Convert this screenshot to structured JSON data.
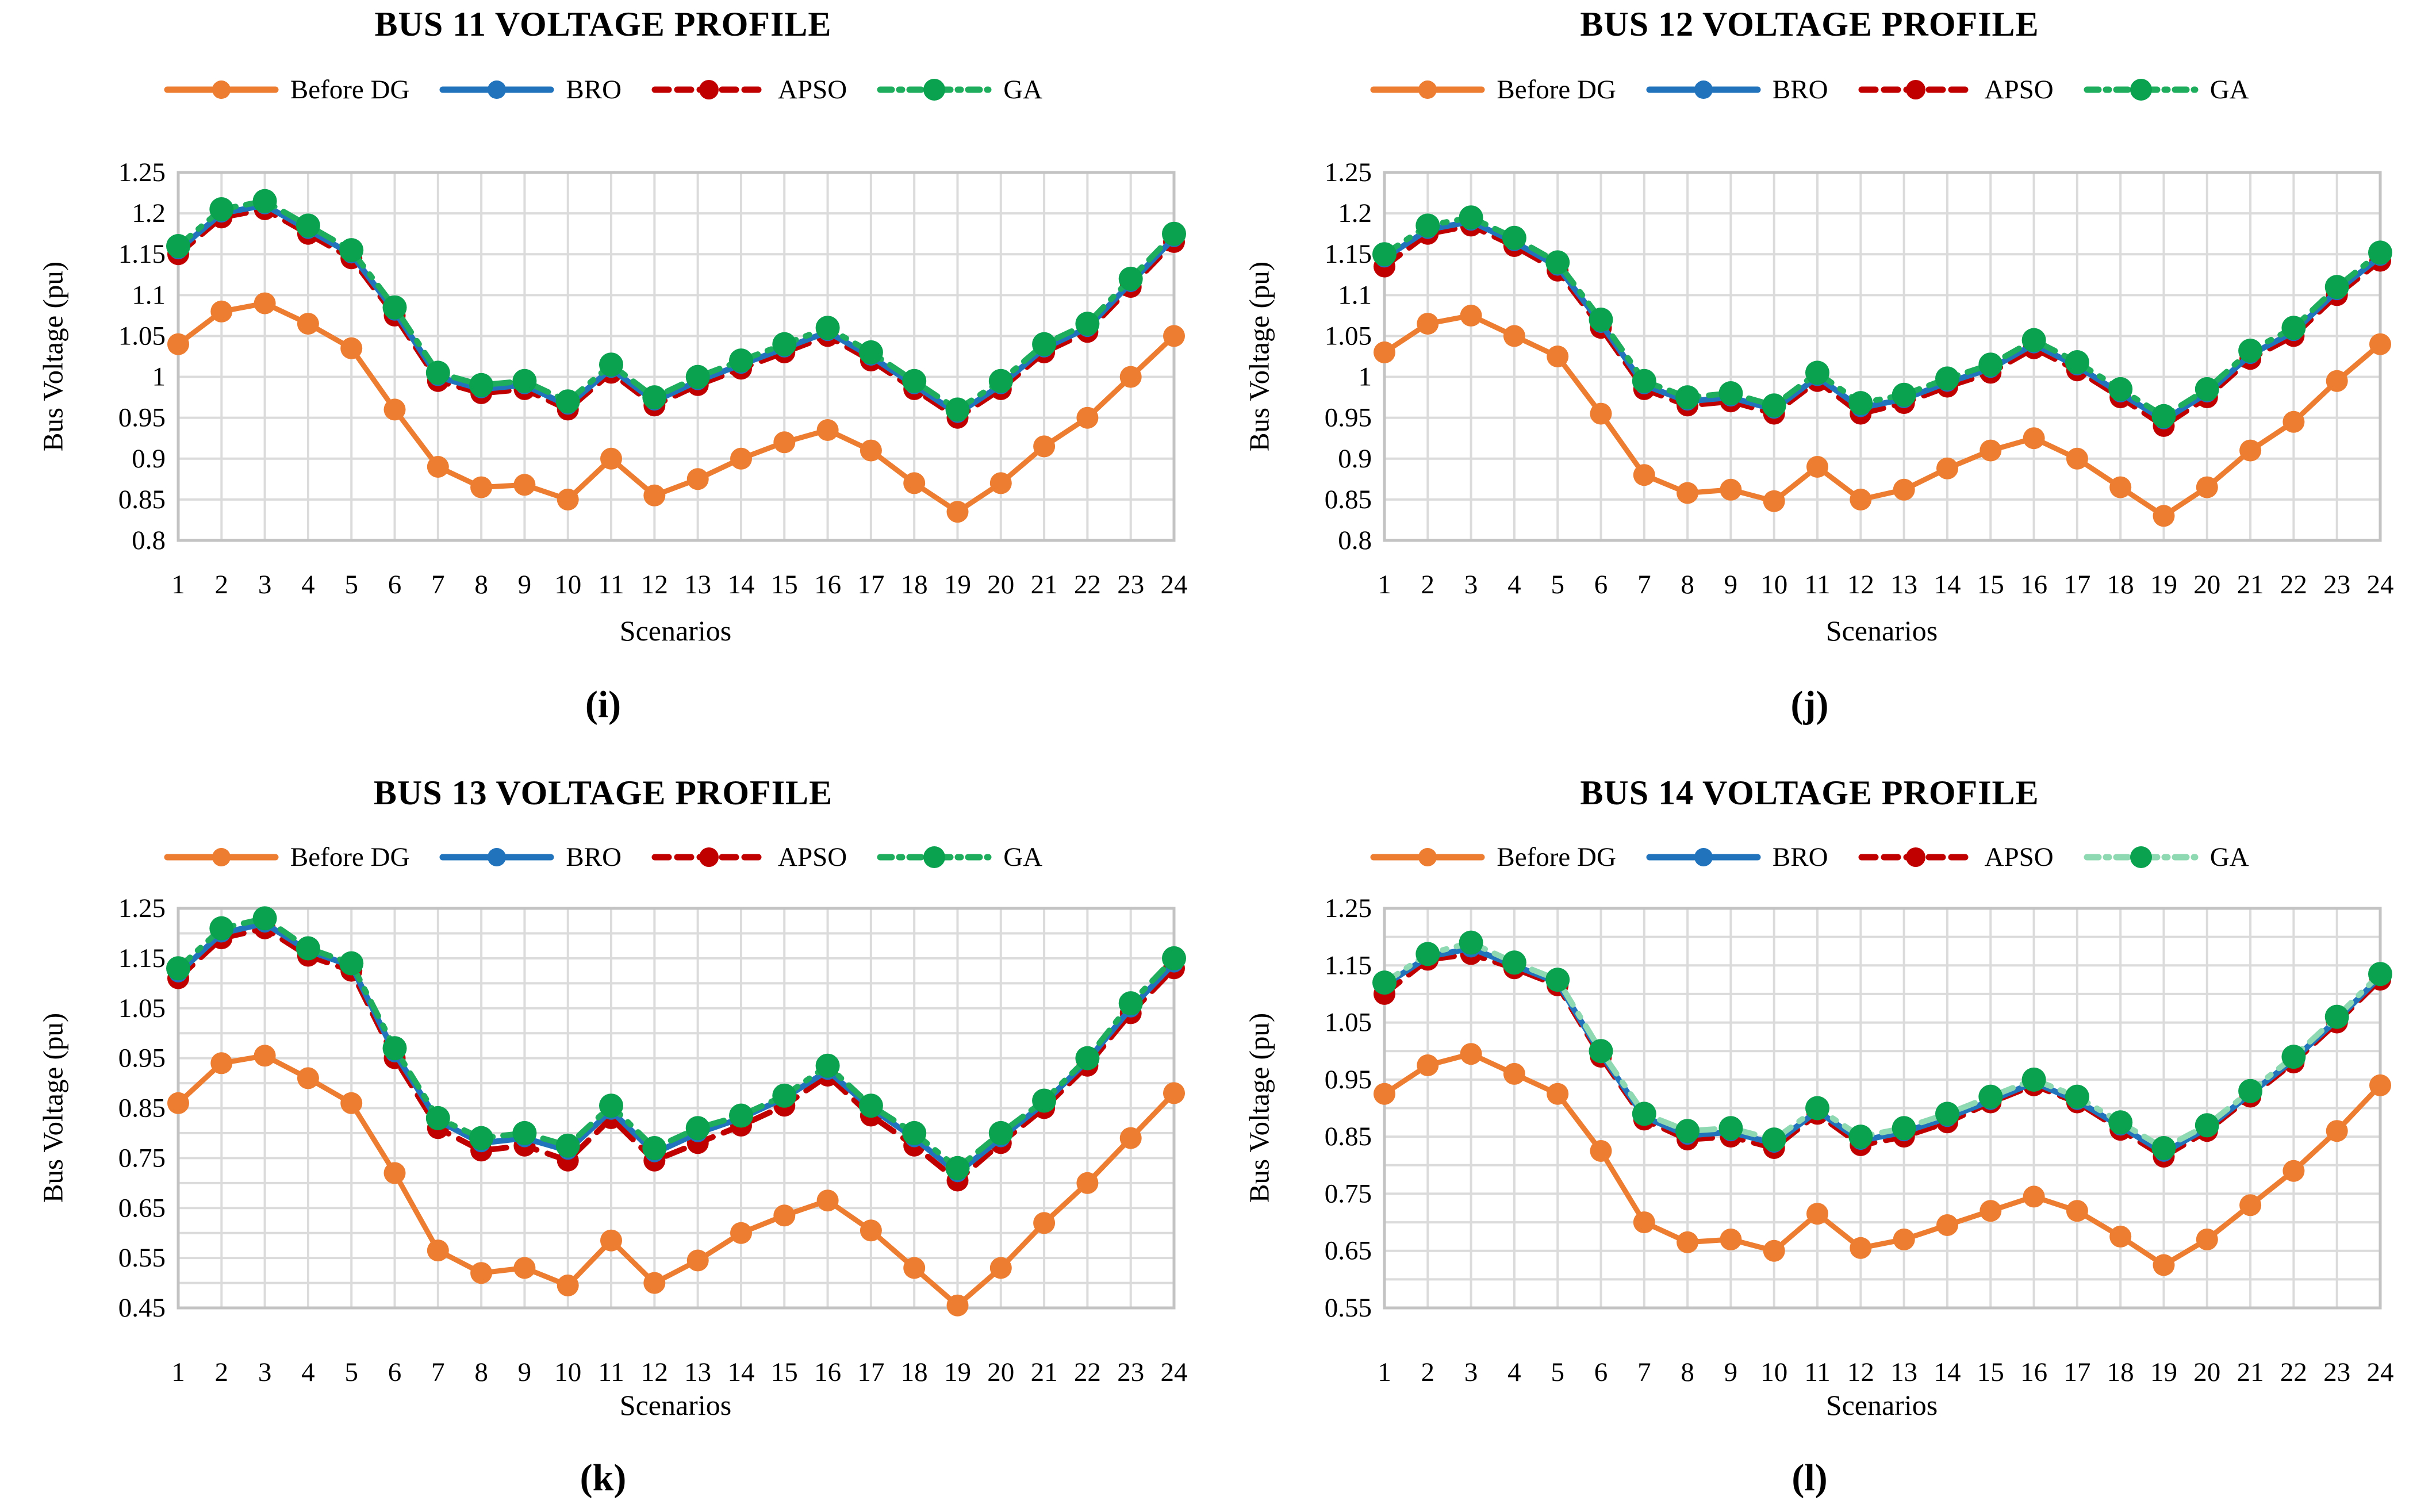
{
  "chart_data": [
    {
      "type": "line",
      "title": "BUS 11 VOLTAGE PROFILE",
      "caption": "(i)",
      "xlabel": "Scenarios",
      "ylabel": "Bus Voltage (pu)",
      "x_categories": [
        1,
        2,
        3,
        4,
        5,
        6,
        7,
        8,
        9,
        10,
        11,
        12,
        13,
        14,
        15,
        16,
        17,
        18,
        19,
        20,
        21,
        22,
        23,
        24
      ],
      "ylim": [
        0.8,
        1.25
      ],
      "grid_step": 0.05,
      "grid": true,
      "legend_position": "top",
      "yticks": [
        "1.25",
        "1.2",
        "1.15",
        "1.1",
        "1.05",
        "1",
        "0.95",
        "0.9",
        "0.85",
        "0.8"
      ],
      "series": [
        {
          "name": "Before DG",
          "dash": "solid",
          "line_color": "#ED7D31",
          "marker_color": "#ED7D31",
          "values": [
            1.04,
            1.08,
            1.09,
            1.065,
            1.035,
            0.96,
            0.89,
            0.865,
            0.868,
            0.85,
            0.9,
            0.855,
            0.875,
            0.9,
            0.92,
            0.935,
            0.91,
            0.87,
            0.835,
            0.87,
            0.915,
            0.95,
            1.0,
            1.05
          ]
        },
        {
          "name": "BRO",
          "dash": "solid",
          "line_color": "#2173BC",
          "marker_color": "#2173BC",
          "values": [
            1.155,
            1.2,
            1.21,
            1.18,
            1.15,
            1.08,
            1.0,
            0.985,
            0.99,
            0.965,
            1.01,
            0.97,
            0.995,
            1.015,
            1.035,
            1.055,
            1.025,
            0.99,
            0.955,
            0.99,
            1.035,
            1.06,
            1.115,
            1.17
          ]
        },
        {
          "name": "APSO",
          "dash": "dashed",
          "line_color": "#C00000",
          "marker_color": "#C00000",
          "values": [
            1.15,
            1.195,
            1.205,
            1.175,
            1.145,
            1.075,
            0.995,
            0.98,
            0.985,
            0.96,
            1.005,
            0.965,
            0.99,
            1.01,
            1.03,
            1.05,
            1.02,
            0.985,
            0.95,
            0.985,
            1.03,
            1.055,
            1.11,
            1.165
          ]
        },
        {
          "name": "GA",
          "dash": "dashdot",
          "line_color": "#1DAD5C",
          "marker_color": "#0AA14F",
          "values": [
            1.16,
            1.205,
            1.215,
            1.185,
            1.155,
            1.085,
            1.005,
            0.99,
            0.995,
            0.97,
            1.015,
            0.975,
            1.0,
            1.02,
            1.04,
            1.06,
            1.03,
            0.995,
            0.96,
            0.995,
            1.04,
            1.065,
            1.12,
            1.175
          ]
        }
      ]
    },
    {
      "type": "line",
      "title": "BUS 12 VOLTAGE PROFILE",
      "caption": "(j)",
      "xlabel": "Scenarios",
      "ylabel": "Bus Voltage (pu)",
      "x_categories": [
        1,
        2,
        3,
        4,
        5,
        6,
        7,
        8,
        9,
        10,
        11,
        12,
        13,
        14,
        15,
        16,
        17,
        18,
        19,
        20,
        21,
        22,
        23,
        24
      ],
      "ylim": [
        0.8,
        1.25
      ],
      "grid_step": 0.05,
      "grid": true,
      "legend_position": "top",
      "yticks": [
        "1.25",
        "1.2",
        "1.15",
        "1.1",
        "1.05",
        "1",
        "0.95",
        "0.9",
        "0.85",
        "0.8"
      ],
      "series": [
        {
          "name": "Before DG",
          "dash": "solid",
          "line_color": "#ED7D31",
          "marker_color": "#ED7D31",
          "values": [
            1.03,
            1.065,
            1.075,
            1.05,
            1.025,
            0.955,
            0.88,
            0.858,
            0.862,
            0.848,
            0.89,
            0.85,
            0.862,
            0.888,
            0.91,
            0.925,
            0.9,
            0.865,
            0.83,
            0.865,
            0.91,
            0.945,
            0.995,
            1.04
          ]
        },
        {
          "name": "BRO",
          "dash": "solid",
          "line_color": "#2173BC",
          "marker_color": "#2173BC",
          "values": [
            1.145,
            1.18,
            1.19,
            1.165,
            1.135,
            1.065,
            0.99,
            0.97,
            0.975,
            0.96,
            1.0,
            0.962,
            0.973,
            0.993,
            1.01,
            1.04,
            1.013,
            0.98,
            0.947,
            0.98,
            1.027,
            1.055,
            1.105,
            1.147
          ]
        },
        {
          "name": "APSO",
          "dash": "dashed",
          "line_color": "#C00000",
          "marker_color": "#C00000",
          "values": [
            1.135,
            1.175,
            1.185,
            1.16,
            1.13,
            1.06,
            0.985,
            0.965,
            0.97,
            0.955,
            0.995,
            0.955,
            0.968,
            0.988,
            1.005,
            1.035,
            1.008,
            0.975,
            0.94,
            0.975,
            1.022,
            1.05,
            1.1,
            1.142
          ]
        },
        {
          "name": "GA",
          "dash": "dashdot",
          "line_color": "#1DAD5C",
          "marker_color": "#0AA14F",
          "values": [
            1.15,
            1.185,
            1.195,
            1.17,
            1.14,
            1.07,
            0.995,
            0.975,
            0.98,
            0.965,
            1.005,
            0.968,
            0.978,
            0.998,
            1.015,
            1.045,
            1.018,
            0.985,
            0.952,
            0.985,
            1.032,
            1.06,
            1.11,
            1.152
          ]
        }
      ]
    },
    {
      "type": "line",
      "title": "BUS 13 VOLTAGE PROFILE",
      "caption": "(k)",
      "xlabel": "Scenarios",
      "ylabel": "Bus Voltage (pu)",
      "x_categories": [
        1,
        2,
        3,
        4,
        5,
        6,
        7,
        8,
        9,
        10,
        11,
        12,
        13,
        14,
        15,
        16,
        17,
        18,
        19,
        20,
        21,
        22,
        23,
        24
      ],
      "ylim": [
        0.45,
        1.25
      ],
      "grid_step": 0.05,
      "grid": true,
      "legend_position": "top",
      "yticks": [
        "1.25",
        "1.15",
        "1.05",
        "0.95",
        "0.85",
        "0.75",
        "0.65",
        "0.55",
        "0.45"
      ],
      "series": [
        {
          "name": "Before DG",
          "dash": "solid",
          "line_color": "#ED7D31",
          "marker_color": "#ED7D31",
          "values": [
            0.86,
            0.94,
            0.955,
            0.91,
            0.86,
            0.72,
            0.565,
            0.52,
            0.53,
            0.495,
            0.585,
            0.5,
            0.545,
            0.6,
            0.635,
            0.665,
            0.605,
            0.53,
            0.455,
            0.53,
            0.62,
            0.7,
            0.79,
            0.88
          ]
        },
        {
          "name": "BRO",
          "dash": "solid",
          "line_color": "#2173BC",
          "marker_color": "#2173BC",
          "values": [
            1.12,
            1.2,
            1.22,
            1.165,
            1.135,
            0.96,
            0.825,
            0.78,
            0.79,
            0.765,
            0.845,
            0.76,
            0.8,
            0.83,
            0.87,
            0.925,
            0.85,
            0.79,
            0.72,
            0.79,
            0.86,
            0.945,
            1.05,
            1.14
          ]
        },
        {
          "name": "APSO",
          "dash": "dashed",
          "line_color": "#C00000",
          "marker_color": "#C00000",
          "values": [
            1.11,
            1.19,
            1.21,
            1.155,
            1.125,
            0.95,
            0.81,
            0.765,
            0.775,
            0.745,
            0.83,
            0.745,
            0.78,
            0.815,
            0.855,
            0.915,
            0.835,
            0.775,
            0.705,
            0.78,
            0.85,
            0.935,
            1.04,
            1.13
          ]
        },
        {
          "name": "GA",
          "dash": "dashdot",
          "line_color": "#1DAD5C",
          "marker_color": "#0AA14F",
          "values": [
            1.13,
            1.21,
            1.23,
            1.17,
            1.14,
            0.97,
            0.83,
            0.79,
            0.8,
            0.775,
            0.855,
            0.77,
            0.81,
            0.835,
            0.875,
            0.935,
            0.855,
            0.8,
            0.73,
            0.8,
            0.865,
            0.95,
            1.06,
            1.15
          ]
        }
      ]
    },
    {
      "type": "line",
      "title": "BUS 14 VOLTAGE PROFILE",
      "caption": "(l)",
      "xlabel": "Scenarios",
      "ylabel": "Bus Voltage (pu)",
      "x_categories": [
        1,
        2,
        3,
        4,
        5,
        6,
        7,
        8,
        9,
        10,
        11,
        12,
        13,
        14,
        15,
        16,
        17,
        18,
        19,
        20,
        21,
        22,
        23,
        24
      ],
      "ylim": [
        0.55,
        1.25
      ],
      "grid_step": 0.05,
      "grid": true,
      "legend_position": "top",
      "yticks": [
        "1.25",
        "1.15",
        "1.05",
        "0.95",
        "0.85",
        "0.75",
        "0.65",
        "0.55"
      ],
      "series": [
        {
          "name": "Before DG",
          "dash": "solid",
          "line_color": "#ED7D31",
          "marker_color": "#ED7D31",
          "values": [
            0.925,
            0.975,
            0.995,
            0.96,
            0.925,
            0.825,
            0.7,
            0.665,
            0.67,
            0.65,
            0.715,
            0.655,
            0.67,
            0.695,
            0.72,
            0.745,
            0.72,
            0.675,
            0.625,
            0.67,
            0.73,
            0.79,
            0.86,
            0.94
          ]
        },
        {
          "name": "BRO",
          "dash": "solid",
          "line_color": "#2173BC",
          "marker_color": "#2173BC",
          "values": [
            1.115,
            1.165,
            1.18,
            1.15,
            1.12,
            0.995,
            0.885,
            0.852,
            0.858,
            0.838,
            0.895,
            0.843,
            0.858,
            0.883,
            0.913,
            0.945,
            0.913,
            0.868,
            0.822,
            0.865,
            0.925,
            0.985,
            1.055,
            1.13
          ]
        },
        {
          "name": "APSO",
          "dash": "dashed",
          "line_color": "#C00000",
          "marker_color": "#C00000",
          "values": [
            1.1,
            1.16,
            1.17,
            1.145,
            1.115,
            0.99,
            0.88,
            0.845,
            0.85,
            0.83,
            0.89,
            0.835,
            0.85,
            0.875,
            0.91,
            0.94,
            0.91,
            0.862,
            0.815,
            0.86,
            0.92,
            0.98,
            1.05,
            1.125
          ]
        },
        {
          "name": "GA",
          "dash": "dashdot",
          "line_color": "#8FD9B2",
          "marker_color": "#0AA14F",
          "values": [
            1.12,
            1.17,
            1.19,
            1.155,
            1.125,
            1.0,
            0.89,
            0.86,
            0.865,
            0.845,
            0.9,
            0.85,
            0.865,
            0.89,
            0.92,
            0.95,
            0.92,
            0.875,
            0.83,
            0.87,
            0.93,
            0.99,
            1.06,
            1.135
          ]
        }
      ]
    }
  ]
}
